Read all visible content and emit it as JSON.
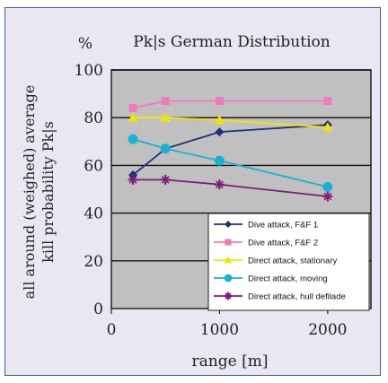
{
  "chart_data": {
    "type": "line",
    "title": "Pk|s German Distribution",
    "unit_label": "%",
    "xlabel": "range [m]",
    "ylabel_line1": "all around (weighed) average",
    "ylabel_line2": "kill probability Pk|s",
    "xlim": [
      0,
      2400
    ],
    "ylim": [
      0,
      100
    ],
    "x_ticks": [
      0,
      1000,
      2000
    ],
    "y_ticks": [
      0,
      20,
      40,
      60,
      80,
      100
    ],
    "grid": true,
    "legend_position": "bottom-right",
    "series": [
      {
        "name": "Dive attack, F&F 1",
        "color": "#1f2f7a",
        "marker": "diamond",
        "x": [
          200,
          500,
          1000,
          2000
        ],
        "y": [
          56,
          67,
          74,
          77
        ]
      },
      {
        "name": "Dive attack, F&F 2",
        "color": "#f07ac0",
        "marker": "square",
        "x": [
          200,
          500,
          1000,
          2000
        ],
        "y": [
          84,
          87,
          87,
          87
        ]
      },
      {
        "name": "Direct attack, stationary",
        "color": "#f2e600",
        "marker": "triangle",
        "x": [
          200,
          500,
          1000,
          2000
        ],
        "y": [
          80,
          80,
          79,
          76
        ]
      },
      {
        "name": "Direct attack, moving",
        "color": "#16b3d4",
        "marker": "circle",
        "x": [
          200,
          500,
          1000,
          2000
        ],
        "y": [
          71,
          67,
          62,
          51
        ]
      },
      {
        "name": "Direct attack, hull defilade",
        "color": "#7a1f7a",
        "marker": "star",
        "x": [
          200,
          500,
          1000,
          2000
        ],
        "y": [
          54,
          54,
          52,
          47
        ]
      }
    ]
  }
}
